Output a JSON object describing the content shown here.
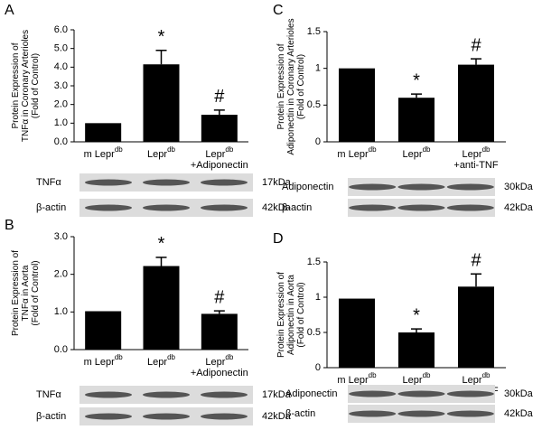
{
  "chart_data": [
    {
      "type": "bar",
      "panel": "A",
      "y_label": [
        "Protein Expression of",
        "TNFα in  Coronary Arterioles",
        "(Fold of Control)"
      ],
      "categories": [
        {
          "text": "m Lepr",
          "sup": "db"
        },
        {
          "text": "Lepr",
          "sup": "db"
        },
        {
          "text": "Lepr",
          "sup": "db",
          "line2": "+Adiponectin"
        }
      ],
      "values": [
        1.0,
        4.15,
        1.45
      ],
      "errors": [
        null,
        0.75,
        0.25
      ],
      "annotations": [
        null,
        "*",
        "#"
      ],
      "color": "#000000",
      "ylim": [
        0,
        6
      ],
      "yticks": [
        {
          "value": 0,
          "label": "0.0"
        },
        {
          "value": 1,
          "label": "1.0"
        },
        {
          "value": 2,
          "label": "2.0"
        },
        {
          "value": 3,
          "label": "3.0"
        },
        {
          "value": 4,
          "label": "4.0"
        },
        {
          "value": 5,
          "label": "5.0"
        },
        {
          "value": 6,
          "label": "6.0"
        }
      ],
      "blots": [
        {
          "label": "TNFα",
          "size": "17kDa"
        },
        {
          "label": "β-actin",
          "size": "42kDa"
        }
      ]
    },
    {
      "type": "bar",
      "panel": "B",
      "y_label": [
        "Protein Expression of",
        "TNFα in  Aorta",
        "(Fold of Control)"
      ],
      "categories": [
        {
          "text": "m Lepr",
          "sup": "db"
        },
        {
          "text": "Lepr",
          "sup": "db"
        },
        {
          "text": "Lepr",
          "sup": "db",
          "line2": "+Adiponectin"
        }
      ],
      "values": [
        1.02,
        2.22,
        0.95
      ],
      "errors": [
        null,
        0.23,
        0.08
      ],
      "annotations": [
        null,
        "*",
        "#"
      ],
      "color": "#000000",
      "ylim": [
        0,
        3
      ],
      "yticks": [
        {
          "value": 0,
          "label": "0.0"
        },
        {
          "value": 1,
          "label": "1.0"
        },
        {
          "value": 2,
          "label": "2.0"
        },
        {
          "value": 3,
          "label": "3.0"
        }
      ],
      "blots": [
        {
          "label": "TNFα",
          "size": "17kDa"
        },
        {
          "label": "β-actin",
          "size": "42kDa"
        }
      ]
    },
    {
      "type": "bar",
      "panel": "C",
      "y_label": [
        "Protein Expression of",
        "Adiponectin in Coronary Arterioles",
        "(Fold of Control)"
      ],
      "categories": [
        {
          "text": "m Lepr",
          "sup": "db"
        },
        {
          "text": "Lepr",
          "sup": "db"
        },
        {
          "text": "Lepr",
          "sup": "db",
          "line2": "+anti-TNF"
        }
      ],
      "values": [
        1.0,
        0.6,
        1.05
      ],
      "errors": [
        null,
        0.05,
        0.08
      ],
      "annotations": [
        null,
        "*",
        "#"
      ],
      "color": "#000000",
      "ylim": [
        0,
        1.5
      ],
      "yticks": [
        0,
        0.5,
        1,
        1.5
      ],
      "blots": [
        {
          "label": "Adiponectin",
          "size": "30kDa"
        },
        {
          "label": "β-actin",
          "size": "42kDa"
        }
      ]
    },
    {
      "type": "bar",
      "panel": "D",
      "y_label": [
        "Protein Expression of",
        "Adiponectin in Aorta",
        "(Fold of Control)"
      ],
      "categories": [
        {
          "text": "m Lepr",
          "sup": "db"
        },
        {
          "text": "Lepr",
          "sup": "db"
        },
        {
          "text": "Lepr",
          "sup": "db",
          "line2": "+anti-TNF"
        }
      ],
      "values": [
        0.98,
        0.5,
        1.15
      ],
      "errors": [
        null,
        0.05,
        0.18
      ],
      "annotations": [
        null,
        "*",
        "#"
      ],
      "color": "#000000",
      "ylim": [
        0,
        1.5
      ],
      "yticks": [
        0,
        0.5,
        1,
        1.5
      ],
      "blots": [
        {
          "label": "Adiponectin",
          "size": "30kDa"
        },
        {
          "label": "β-actin",
          "size": "42kDa"
        }
      ]
    }
  ]
}
